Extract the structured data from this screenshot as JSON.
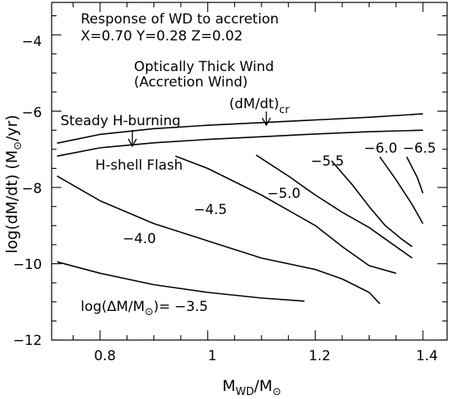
{
  "chart_data": {
    "type": "line",
    "title": "Response of WD to accretion",
    "subtitle": "X=0.70 Y=0.28 Z=0.02",
    "xlabel": {
      "main": "M",
      "sub": "WD",
      "slash": "/M",
      "sub2": "⊙"
    },
    "ylabel": {
      "pre": "log(dM/dt)  (M",
      "sub": "⊙",
      "post": "/yr)"
    },
    "xlim": [
      0.71,
      1.445
    ],
    "ylim": [
      -12,
      -3.15
    ],
    "xticks": [
      0.8,
      1.0,
      1.2,
      1.4
    ],
    "xtick_labels": [
      "0.8",
      "1",
      "1.2",
      "1.4"
    ],
    "yticks": [
      -12,
      -10,
      -8,
      -6,
      -4
    ],
    "ytick_labels": [
      "−12",
      "−10",
      "−8",
      "−6",
      "−4"
    ],
    "boundary_lines": [
      {
        "x": [
          0.72,
          0.8,
          0.9,
          1.0,
          1.1,
          1.2,
          1.3,
          1.4
        ],
        "y": [
          -6.84,
          -6.61,
          -6.46,
          -6.37,
          -6.3,
          -6.23,
          -6.16,
          -6.07
        ]
      },
      {
        "x": [
          0.72,
          0.8,
          0.9,
          1.0,
          1.1,
          1.2,
          1.3,
          1.4
        ],
        "y": [
          -7.18,
          -6.96,
          -6.83,
          -6.74,
          -6.67,
          -6.6,
          -6.54,
          -6.5
        ]
      }
    ],
    "contours": [
      {
        "label": "−3.5",
        "x": [
          0.72,
          0.8,
          0.9,
          1.0,
          1.1,
          1.18
        ],
        "y": [
          -9.95,
          -10.25,
          -10.55,
          -10.75,
          -10.9,
          -10.98
        ]
      },
      {
        "label": "−4.0",
        "x": [
          0.72,
          0.8,
          0.9,
          1.0,
          1.1,
          1.2,
          1.25,
          1.3,
          1.32
        ],
        "y": [
          -7.7,
          -8.35,
          -8.95,
          -9.4,
          -9.85,
          -10.15,
          -10.4,
          -10.75,
          -11.05
        ]
      },
      {
        "label": "−4.5",
        "x": [
          0.94,
          1.0,
          1.1,
          1.2,
          1.25,
          1.3,
          1.35
        ],
        "y": [
          -7.18,
          -7.5,
          -8.2,
          -9.0,
          -9.55,
          -10.05,
          -10.25
        ]
      },
      {
        "label": "−5.0",
        "x": [
          1.09,
          1.15,
          1.2,
          1.25,
          1.3,
          1.35,
          1.38
        ],
        "y": [
          -7.15,
          -7.7,
          -8.2,
          -8.65,
          -9.05,
          -9.55,
          -9.85
        ]
      },
      {
        "label": "−5.5",
        "x": [
          1.23,
          1.27,
          1.3,
          1.33,
          1.36,
          1.38
        ],
        "y": [
          -7.3,
          -7.95,
          -8.5,
          -9.0,
          -9.35,
          -9.55
        ]
      },
      {
        "label": "−6.0",
        "x": [
          1.32,
          1.35,
          1.38,
          1.4
        ],
        "y": [
          -7.2,
          -7.8,
          -8.45,
          -8.95
        ]
      },
      {
        "label": "−6.5",
        "x": [
          1.37,
          1.39,
          1.4
        ],
        "y": [
          -7.2,
          -7.75,
          -8.15
        ]
      }
    ],
    "annotations": {
      "wind_1": "Optically Thick Wind",
      "wind_2": "(Accretion Wind)",
      "crit_main": "(dM/dt)",
      "crit_sub": "cr",
      "steady": "Steady H-burning",
      "flash": "H-shell Flash",
      "c_m35_pre": "log(ΔM/M",
      "c_m35_sub": "⊙",
      "c_m35_post": ")=  −3.5",
      "c_m40": "−4.0",
      "c_m45": "−4.5",
      "c_m50": "−5.0",
      "c_m55": "−5.5",
      "c_m60": "−6.0",
      "c_m65": "−6.5"
    },
    "grid": false
  }
}
